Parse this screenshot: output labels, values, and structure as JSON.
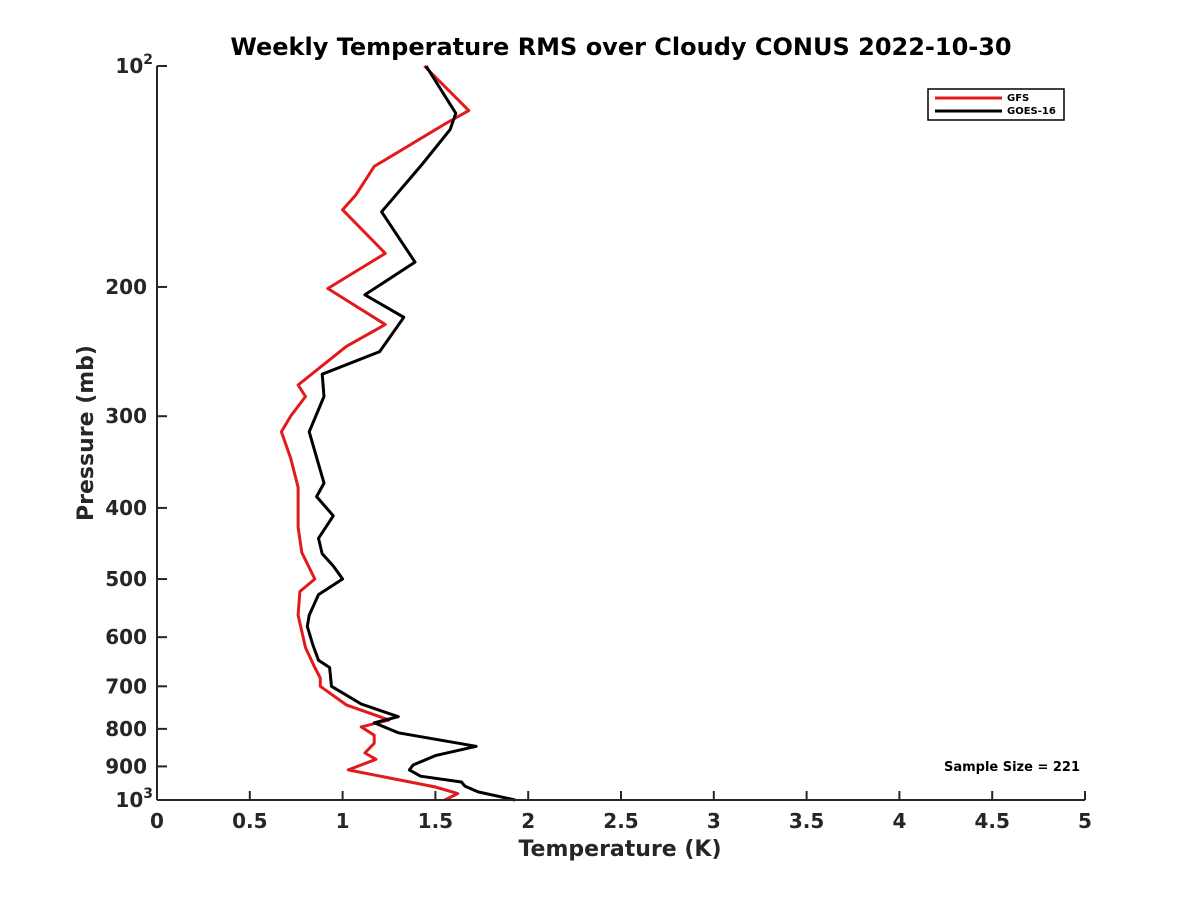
{
  "chart_data": {
    "type": "line",
    "title": "Weekly Temperature RMS over Cloudy CONUS 2022-10-30",
    "xlabel": "Temperature (K)",
    "ylabel": "Pressure (mb)",
    "xlim": [
      0,
      5
    ],
    "ylim": [
      100,
      1000
    ],
    "y_scale": "log",
    "y_reversed": true,
    "x_ticks": [
      "0",
      "0.5",
      "1",
      "1.5",
      "2",
      "2.5",
      "3",
      "3.5",
      "4",
      "4.5",
      "5"
    ],
    "y_ticks": [
      {
        "value": 100,
        "label": "10",
        "sup": "2"
      },
      {
        "value": 200,
        "label": "200"
      },
      {
        "value": 300,
        "label": "300"
      },
      {
        "value": 400,
        "label": "400"
      },
      {
        "value": 500,
        "label": "500"
      },
      {
        "value": 600,
        "label": "600"
      },
      {
        "value": 700,
        "label": "700"
      },
      {
        "value": 800,
        "label": "800"
      },
      {
        "value": 900,
        "label": "900"
      },
      {
        "value": 1000,
        "label": "10",
        "sup": "3"
      }
    ],
    "grid": false,
    "legend_position": "top-right",
    "annotation": "Sample Size = 221",
    "series": [
      {
        "name": "GFS",
        "color": "#e31a1c",
        "points": [
          [
            1.44,
            100
          ],
          [
            1.68,
            115
          ],
          [
            1.55,
            120
          ],
          [
            1.17,
            137
          ],
          [
            1.07,
            150
          ],
          [
            1.0,
            157
          ],
          [
            1.23,
            180
          ],
          [
            0.92,
            201
          ],
          [
            1.23,
            225
          ],
          [
            1.02,
            241
          ],
          [
            0.76,
            272
          ],
          [
            0.8,
            282
          ],
          [
            0.72,
            300
          ],
          [
            0.67,
            315
          ],
          [
            0.72,
            342
          ],
          [
            0.76,
            375
          ],
          [
            0.76,
            392
          ],
          [
            0.76,
            425
          ],
          [
            0.78,
            460
          ],
          [
            0.85,
            500
          ],
          [
            0.77,
            520
          ],
          [
            0.76,
            560
          ],
          [
            0.8,
            620
          ],
          [
            0.85,
            660
          ],
          [
            0.88,
            682
          ],
          [
            0.88,
            700
          ],
          [
            1.02,
            742
          ],
          [
            1.25,
            778
          ],
          [
            1.1,
            795
          ],
          [
            1.17,
            816
          ],
          [
            1.17,
            837
          ],
          [
            1.12,
            863
          ],
          [
            1.18,
            880
          ],
          [
            1.03,
            910
          ],
          [
            1.5,
            960
          ],
          [
            1.62,
            980
          ],
          [
            1.55,
            1000
          ]
        ]
      },
      {
        "name": "GOES-16",
        "color": "#000000",
        "points": [
          [
            1.45,
            100
          ],
          [
            1.61,
            116
          ],
          [
            1.58,
            122
          ],
          [
            1.43,
            136
          ],
          [
            1.21,
            158
          ],
          [
            1.39,
            185
          ],
          [
            1.12,
            205
          ],
          [
            1.33,
            220
          ],
          [
            1.2,
            245
          ],
          [
            0.89,
            263
          ],
          [
            0.9,
            282
          ],
          [
            0.82,
            315
          ],
          [
            0.9,
            370
          ],
          [
            0.86,
            386
          ],
          [
            0.95,
            410
          ],
          [
            0.87,
            440
          ],
          [
            0.89,
            462
          ],
          [
            0.95,
            480
          ],
          [
            1.0,
            500
          ],
          [
            0.87,
            525
          ],
          [
            0.82,
            560
          ],
          [
            0.81,
            580
          ],
          [
            0.84,
            615
          ],
          [
            0.87,
            645
          ],
          [
            0.93,
            660
          ],
          [
            0.94,
            700
          ],
          [
            1.1,
            740
          ],
          [
            1.3,
            770
          ],
          [
            1.17,
            785
          ],
          [
            1.3,
            810
          ],
          [
            1.72,
            845
          ],
          [
            1.5,
            870
          ],
          [
            1.38,
            896
          ],
          [
            1.36,
            910
          ],
          [
            1.42,
            928
          ],
          [
            1.64,
            945
          ],
          [
            1.66,
            958
          ],
          [
            1.73,
            975
          ],
          [
            1.93,
            1000
          ]
        ]
      }
    ]
  }
}
